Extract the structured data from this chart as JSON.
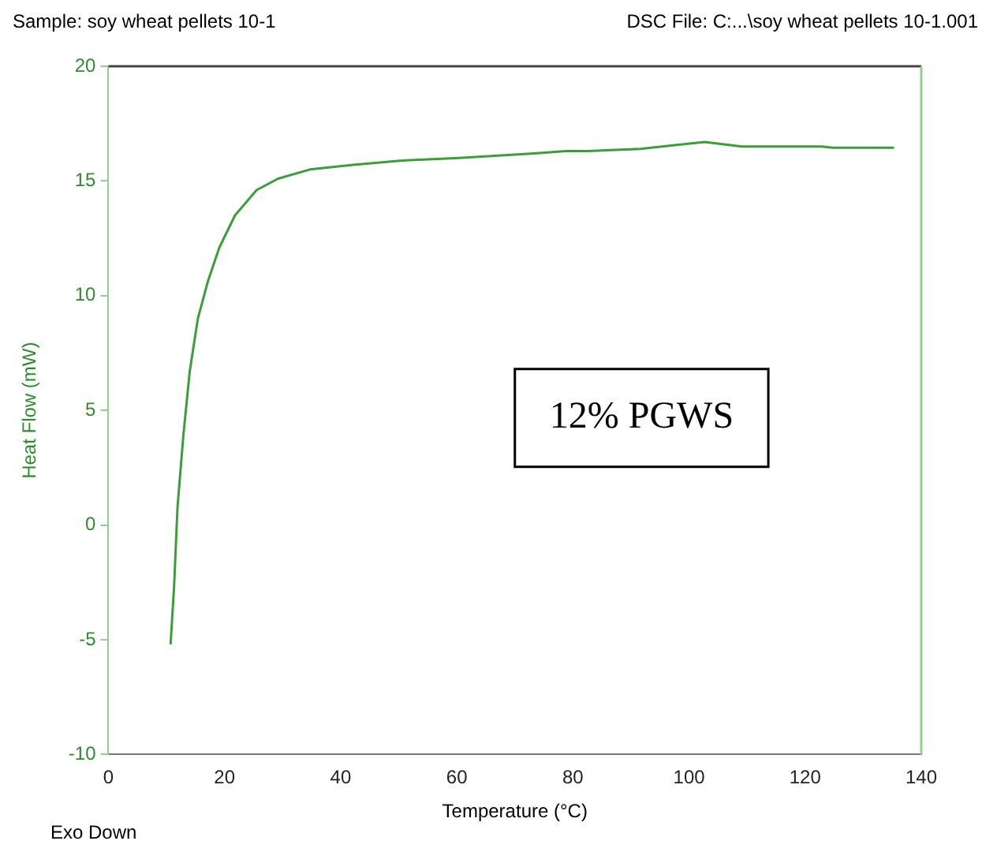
{
  "chart_data": {
    "type": "line",
    "xlabel": "Temperature (°C)",
    "ylabel": "Heat Flow (mW)",
    "annotations": [
      "Sample: soy wheat pellets 10-1",
      "DSC File: C:...\\soy wheat pellets 10-1.001",
      "Exo Down",
      "12% PGWS"
    ],
    "x": [
      10.7,
      11.3,
      11.9,
      12.9,
      14.0,
      15.4,
      17.1,
      19.1,
      21.8,
      25.5,
      29.2,
      34.7,
      42.1,
      51.2,
      60.4,
      73.3,
      78.8,
      82.5,
      91.6,
      97.2,
      102.7,
      109.1,
      122.9,
      124.7,
      135.3
    ],
    "series": [
      {
        "color": "#3a9e3a",
        "values": [
          -5.2,
          -2.7,
          0.8,
          3.9,
          6.7,
          9.0,
          10.6,
          12.1,
          13.5,
          14.6,
          15.1,
          15.5,
          15.7,
          15.9,
          16.0,
          16.2,
          16.3,
          16.3,
          16.4,
          16.55,
          16.7,
          16.5,
          16.5,
          16.45,
          16.45
        ]
      }
    ],
    "xlim": [
      0,
      140
    ],
    "xticks": [
      0,
      20,
      40,
      60,
      80,
      100,
      120,
      140
    ],
    "ylim": [
      -10,
      20
    ],
    "yticks": [
      -10,
      -5,
      0,
      5,
      10,
      15,
      20
    ],
    "grid": false,
    "legend": false,
    "marker": "none",
    "line_style": "solid"
  }
}
